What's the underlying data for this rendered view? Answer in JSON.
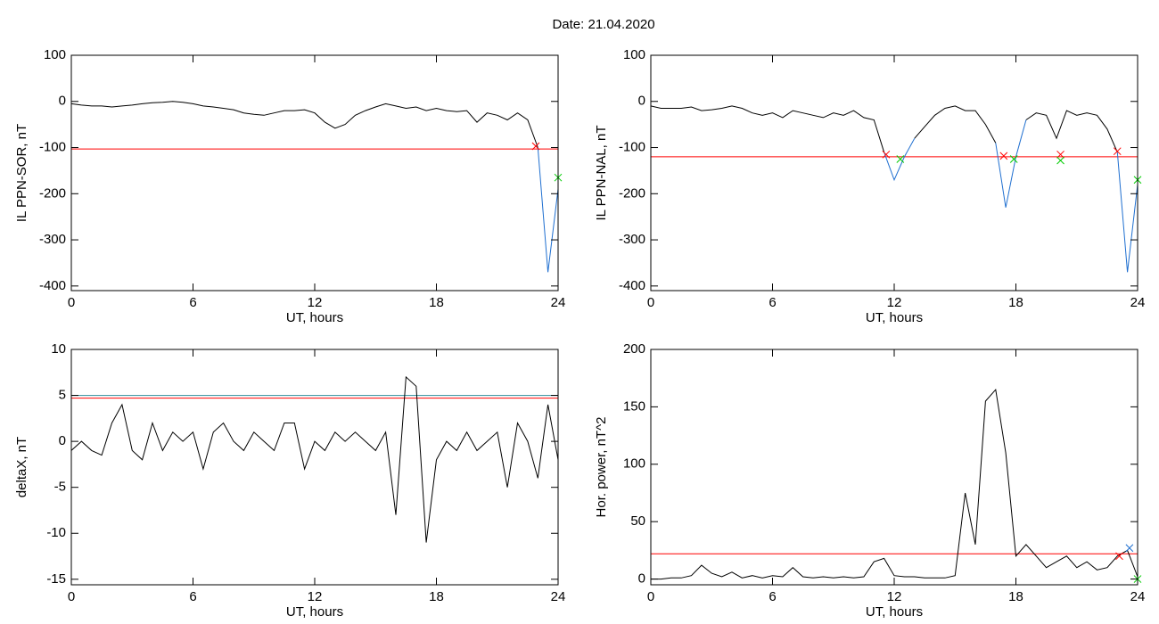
{
  "title": "Date:  21.04.2020",
  "chart_data": [
    {
      "type": "line",
      "xlabel": "UT, hours",
      "ylabel": "IL PPN-SOR, nT",
      "x": [
        0,
        0.5,
        1,
        1.5,
        2,
        2.5,
        3,
        3.5,
        4,
        4.5,
        5,
        5.5,
        6,
        6.5,
        7,
        7.5,
        8,
        8.5,
        9,
        9.5,
        10,
        10.5,
        11,
        11.5,
        12,
        12.5,
        13,
        13.5,
        14,
        14.5,
        15,
        15.5,
        16,
        16.5,
        17,
        17.5,
        18,
        18.5,
        19,
        19.5,
        20,
        20.5,
        21,
        21.5,
        22,
        22.5,
        23,
        23.5,
        24
      ],
      "series": [
        {
          "color": "#000000",
          "values": [
            -5,
            -8,
            -10,
            -10,
            -12,
            -10,
            -8,
            -5,
            -3,
            -2,
            0,
            -2,
            -5,
            -10,
            -12,
            -15,
            -18,
            -25,
            -28,
            -30,
            -25,
            -20,
            -20,
            -18,
            -25,
            -45,
            -58,
            -50,
            -30,
            -20,
            -12,
            -5,
            -10,
            -15,
            -12,
            -20,
            -15,
            -20,
            -22,
            -20,
            -45,
            -25,
            -30,
            -40,
            -25,
            -40,
            -100,
            null,
            null
          ]
        },
        {
          "color": "#1f6fd0",
          "values": [
            null,
            null,
            null,
            null,
            null,
            null,
            null,
            null,
            null,
            null,
            null,
            null,
            null,
            null,
            null,
            null,
            null,
            null,
            null,
            null,
            null,
            null,
            null,
            null,
            null,
            null,
            null,
            null,
            null,
            null,
            null,
            null,
            null,
            null,
            null,
            null,
            null,
            null,
            null,
            null,
            null,
            null,
            null,
            null,
            null,
            null,
            -100,
            -370,
            -190
          ]
        }
      ],
      "hlines": [
        {
          "value": -103,
          "color": "#ff0000"
        }
      ],
      "markers": [
        {
          "x": 22.9,
          "y": -97,
          "color": "#ff0000"
        },
        {
          "x": 24,
          "y": -165,
          "color": "#00cc00"
        }
      ],
      "xlim": [
        0,
        24
      ],
      "xticks": [
        0,
        6,
        12,
        18,
        24
      ],
      "ylim": [
        -410,
        100
      ],
      "yticks": [
        100,
        0,
        -100,
        -200,
        -300,
        -400
      ]
    },
    {
      "type": "line",
      "xlabel": "UT, hours",
      "ylabel": "IL PPN-NAL, nT",
      "x": [
        0,
        0.5,
        1,
        1.5,
        2,
        2.5,
        3,
        3.5,
        4,
        4.5,
        5,
        5.5,
        6,
        6.5,
        7,
        7.5,
        8,
        8.5,
        9,
        9.5,
        10,
        10.5,
        11,
        11.5,
        12,
        12.5,
        13,
        13.5,
        14,
        14.5,
        15,
        15.5,
        16,
        16.5,
        17,
        17.5,
        18,
        18.5,
        19,
        19.5,
        20,
        20.5,
        21,
        21.5,
        22,
        22.5,
        23,
        23.5,
        24
      ],
      "series": [
        {
          "color": "#000000",
          "values": [
            -10,
            -15,
            -15,
            -15,
            -12,
            -20,
            -18,
            -15,
            -10,
            -15,
            -25,
            -30,
            -25,
            -35,
            -20,
            -25,
            -30,
            -35,
            -25,
            -30,
            -20,
            -35,
            -40,
            -110,
            null,
            null,
            -80,
            -55,
            -30,
            -15,
            -10,
            -20,
            -20,
            -50,
            -90,
            null,
            null,
            -40,
            -25,
            -30,
            -80,
            -20,
            -30,
            -25,
            -30,
            -60,
            -110,
            null,
            null
          ]
        },
        {
          "color": "#1f6fd0",
          "values": [
            null,
            null,
            null,
            null,
            null,
            null,
            null,
            null,
            null,
            null,
            null,
            null,
            null,
            null,
            null,
            null,
            null,
            null,
            null,
            null,
            null,
            null,
            null,
            -110,
            -170,
            -120,
            -80,
            null,
            null,
            null,
            null,
            null,
            null,
            null,
            -90,
            -230,
            -120,
            -40,
            null,
            null,
            null,
            null,
            null,
            null,
            null,
            null,
            -110,
            -370,
            -180
          ]
        }
      ],
      "hlines": [
        {
          "value": -120,
          "color": "#ff0000"
        }
      ],
      "markers": [
        {
          "x": 11.6,
          "y": -115,
          "color": "#ff0000"
        },
        {
          "x": 17.4,
          "y": -118,
          "color": "#ff0000"
        },
        {
          "x": 20.2,
          "y": -115,
          "color": "#ff0000"
        },
        {
          "x": 23.0,
          "y": -108,
          "color": "#ff0000"
        },
        {
          "x": 12.3,
          "y": -125,
          "color": "#00cc00"
        },
        {
          "x": 17.9,
          "y": -125,
          "color": "#00cc00"
        },
        {
          "x": 20.2,
          "y": -128,
          "color": "#00cc00"
        },
        {
          "x": 24,
          "y": -170,
          "color": "#00cc00"
        }
      ],
      "xlim": [
        0,
        24
      ],
      "xticks": [
        0,
        6,
        12,
        18,
        24
      ],
      "ylim": [
        -410,
        100
      ],
      "yticks": [
        100,
        0,
        -100,
        -200,
        -300,
        -400
      ]
    },
    {
      "type": "line",
      "xlabel": "UT, hours",
      "ylabel": "deltaX, nT",
      "x": [
        0,
        0.5,
        1,
        1.5,
        2,
        2.5,
        3,
        3.5,
        4,
        4.5,
        5,
        5.5,
        6,
        6.5,
        7,
        7.5,
        8,
        8.5,
        9,
        9.5,
        10,
        10.5,
        11,
        11.5,
        12,
        12.5,
        13,
        13.5,
        14,
        14.5,
        15,
        15.5,
        16,
        16.5,
        17,
        17.5,
        18,
        18.5,
        19,
        19.5,
        20,
        20.5,
        21,
        21.5,
        22,
        22.5,
        23,
        23.5,
        24
      ],
      "series": [
        {
          "color": "#000000",
          "values": [
            -1,
            0,
            -1,
            -1.5,
            2,
            4,
            -1,
            -2,
            2,
            -1,
            1,
            0,
            1,
            -3,
            1,
            2,
            0,
            -1,
            1,
            0,
            -1,
            2,
            2,
            -3,
            0,
            -1,
            1,
            0,
            1,
            0,
            -1,
            1,
            -8,
            7,
            6,
            -11,
            -2,
            0,
            -1,
            1,
            -1,
            0,
            1,
            -5,
            2,
            0,
            -4,
            4,
            -2
          ]
        }
      ],
      "hlines": [
        {
          "value": 4.7,
          "color": "#ff0000"
        },
        {
          "value": 5.0,
          "color": "#2e8b9a"
        }
      ],
      "markers": [],
      "xlim": [
        0,
        24
      ],
      "xticks": [
        0,
        6,
        12,
        18,
        24
      ],
      "ylim": [
        -15.6,
        10
      ],
      "yticks": [
        10,
        5,
        0,
        -5,
        -10,
        -15
      ]
    },
    {
      "type": "line",
      "xlabel": "UT, hours",
      "ylabel": "Hor. power, nT^2",
      "x": [
        0,
        0.5,
        1,
        1.5,
        2,
        2.5,
        3,
        3.5,
        4,
        4.5,
        5,
        5.5,
        6,
        6.5,
        7,
        7.5,
        8,
        8.5,
        9,
        9.5,
        10,
        10.5,
        11,
        11.5,
        12,
        12.5,
        13,
        13.5,
        14,
        14.5,
        15,
        15.5,
        16,
        16.5,
        17,
        17.5,
        18,
        18.5,
        19,
        19.5,
        20,
        20.5,
        21,
        21.5,
        22,
        22.5,
        23,
        23.5,
        24
      ],
      "series": [
        {
          "color": "#000000",
          "values": [
            0,
            0,
            1,
            1,
            3,
            12,
            5,
            2,
            6,
            1,
            3,
            1,
            3,
            2,
            10,
            2,
            1,
            2,
            1,
            2,
            1,
            2,
            15,
            18,
            3,
            2,
            2,
            1,
            1,
            1,
            3,
            75,
            30,
            155,
            165,
            110,
            20,
            30,
            20,
            10,
            15,
            20,
            10,
            15,
            8,
            10,
            20,
            25,
            2
          ]
        }
      ],
      "hlines": [
        {
          "value": 22,
          "color": "#ff0000"
        }
      ],
      "markers": [
        {
          "x": 23.1,
          "y": 20,
          "color": "#ff0000"
        },
        {
          "x": 23.6,
          "y": 27,
          "color": "#1f6fd0"
        },
        {
          "x": 24,
          "y": 0,
          "color": "#00cc00"
        }
      ],
      "xlim": [
        0,
        24
      ],
      "xticks": [
        0,
        6,
        12,
        18,
        24
      ],
      "ylim": [
        -5,
        200
      ],
      "yticks": [
        200,
        150,
        100,
        50,
        0
      ]
    }
  ]
}
